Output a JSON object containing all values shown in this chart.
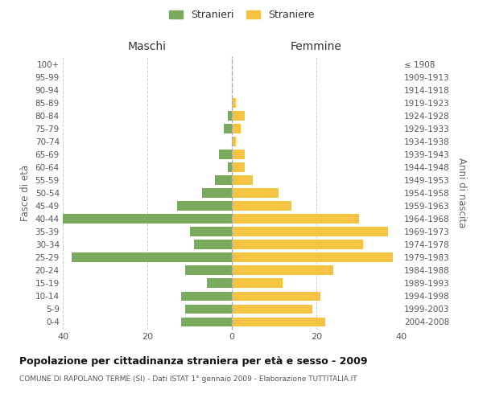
{
  "age_groups": [
    "0-4",
    "5-9",
    "10-14",
    "15-19",
    "20-24",
    "25-29",
    "30-34",
    "35-39",
    "40-44",
    "45-49",
    "50-54",
    "55-59",
    "60-64",
    "65-69",
    "70-74",
    "75-79",
    "80-84",
    "85-89",
    "90-94",
    "95-99",
    "100+"
  ],
  "birth_years": [
    "2004-2008",
    "1999-2003",
    "1994-1998",
    "1989-1993",
    "1984-1988",
    "1979-1983",
    "1974-1978",
    "1969-1973",
    "1964-1968",
    "1959-1963",
    "1954-1958",
    "1949-1953",
    "1944-1948",
    "1939-1943",
    "1934-1938",
    "1929-1933",
    "1924-1928",
    "1919-1923",
    "1914-1918",
    "1909-1913",
    "≤ 1908"
  ],
  "maschi": [
    12,
    11,
    12,
    6,
    11,
    38,
    9,
    10,
    40,
    13,
    7,
    4,
    1,
    3,
    0,
    2,
    1,
    0,
    0,
    0,
    0
  ],
  "femmine": [
    22,
    19,
    21,
    12,
    24,
    38,
    31,
    37,
    30,
    14,
    11,
    5,
    3,
    3,
    1,
    2,
    3,
    1,
    0,
    0,
    0
  ],
  "color_maschi": "#7aaa5e",
  "color_femmine": "#f5c242",
  "title": "Popolazione per cittadinanza straniera per età e sesso - 2009",
  "subtitle": "COMUNE DI RAPOLANO TERME (SI) - Dati ISTAT 1° gennaio 2009 - Elaborazione TUTTITALIA.IT",
  "xlabel_left": "Maschi",
  "xlabel_right": "Femmine",
  "ylabel_left": "Fasce di età",
  "ylabel_right": "Anni di nascita",
  "legend_maschi": "Stranieri",
  "legend_femmine": "Straniere",
  "xlim": 40,
  "background_color": "#ffffff",
  "grid_color": "#cccccc"
}
